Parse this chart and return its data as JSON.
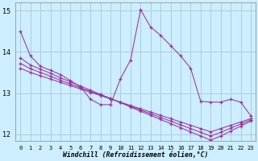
{
  "bg_color": "#cceeff",
  "grid_color": "#aaccdd",
  "line_color": "#993399",
  "xlabel": "Windchill (Refroidissement éolien,°C)",
  "x_hours": [
    0,
    1,
    2,
    3,
    4,
    5,
    6,
    7,
    8,
    9,
    10,
    11,
    12,
    13,
    14,
    15,
    16,
    17,
    18,
    19,
    20,
    21,
    22,
    23
  ],
  "main_line": [
    14.5,
    13.9,
    13.65,
    13.55,
    13.45,
    13.3,
    13.15,
    12.85,
    12.72,
    12.72,
    13.35,
    13.8,
    15.02,
    14.6,
    14.4,
    14.15,
    13.9,
    13.6,
    12.8,
    12.78,
    12.78,
    12.85,
    12.78,
    12.45
  ],
  "reg_line1": [
    13.85,
    13.68,
    13.58,
    13.48,
    13.37,
    13.27,
    13.17,
    13.07,
    12.97,
    12.87,
    12.77,
    12.66,
    12.56,
    12.46,
    12.36,
    12.26,
    12.16,
    12.06,
    11.96,
    11.86,
    11.96,
    12.08,
    12.2,
    12.32
  ],
  "reg_line2": [
    13.72,
    13.59,
    13.5,
    13.41,
    13.31,
    13.22,
    13.13,
    13.04,
    12.95,
    12.86,
    12.77,
    12.68,
    12.59,
    12.5,
    12.41,
    12.32,
    12.23,
    12.14,
    12.05,
    11.96,
    12.05,
    12.15,
    12.25,
    12.35
  ],
  "reg_line3": [
    13.6,
    13.5,
    13.42,
    13.34,
    13.26,
    13.18,
    13.1,
    13.02,
    12.94,
    12.86,
    12.78,
    12.7,
    12.62,
    12.54,
    12.46,
    12.38,
    12.3,
    12.22,
    12.14,
    12.06,
    12.14,
    12.22,
    12.3,
    12.38
  ],
  "ylim": [
    11.85,
    15.2
  ],
  "yticks": [
    12,
    13,
    14,
    15
  ],
  "xlim": [
    -0.5,
    23.5
  ],
  "xticks": [
    0,
    1,
    2,
    3,
    4,
    5,
    6,
    7,
    8,
    9,
    10,
    11,
    12,
    13,
    14,
    15,
    16,
    17,
    18,
    19,
    20,
    21,
    22,
    23
  ]
}
